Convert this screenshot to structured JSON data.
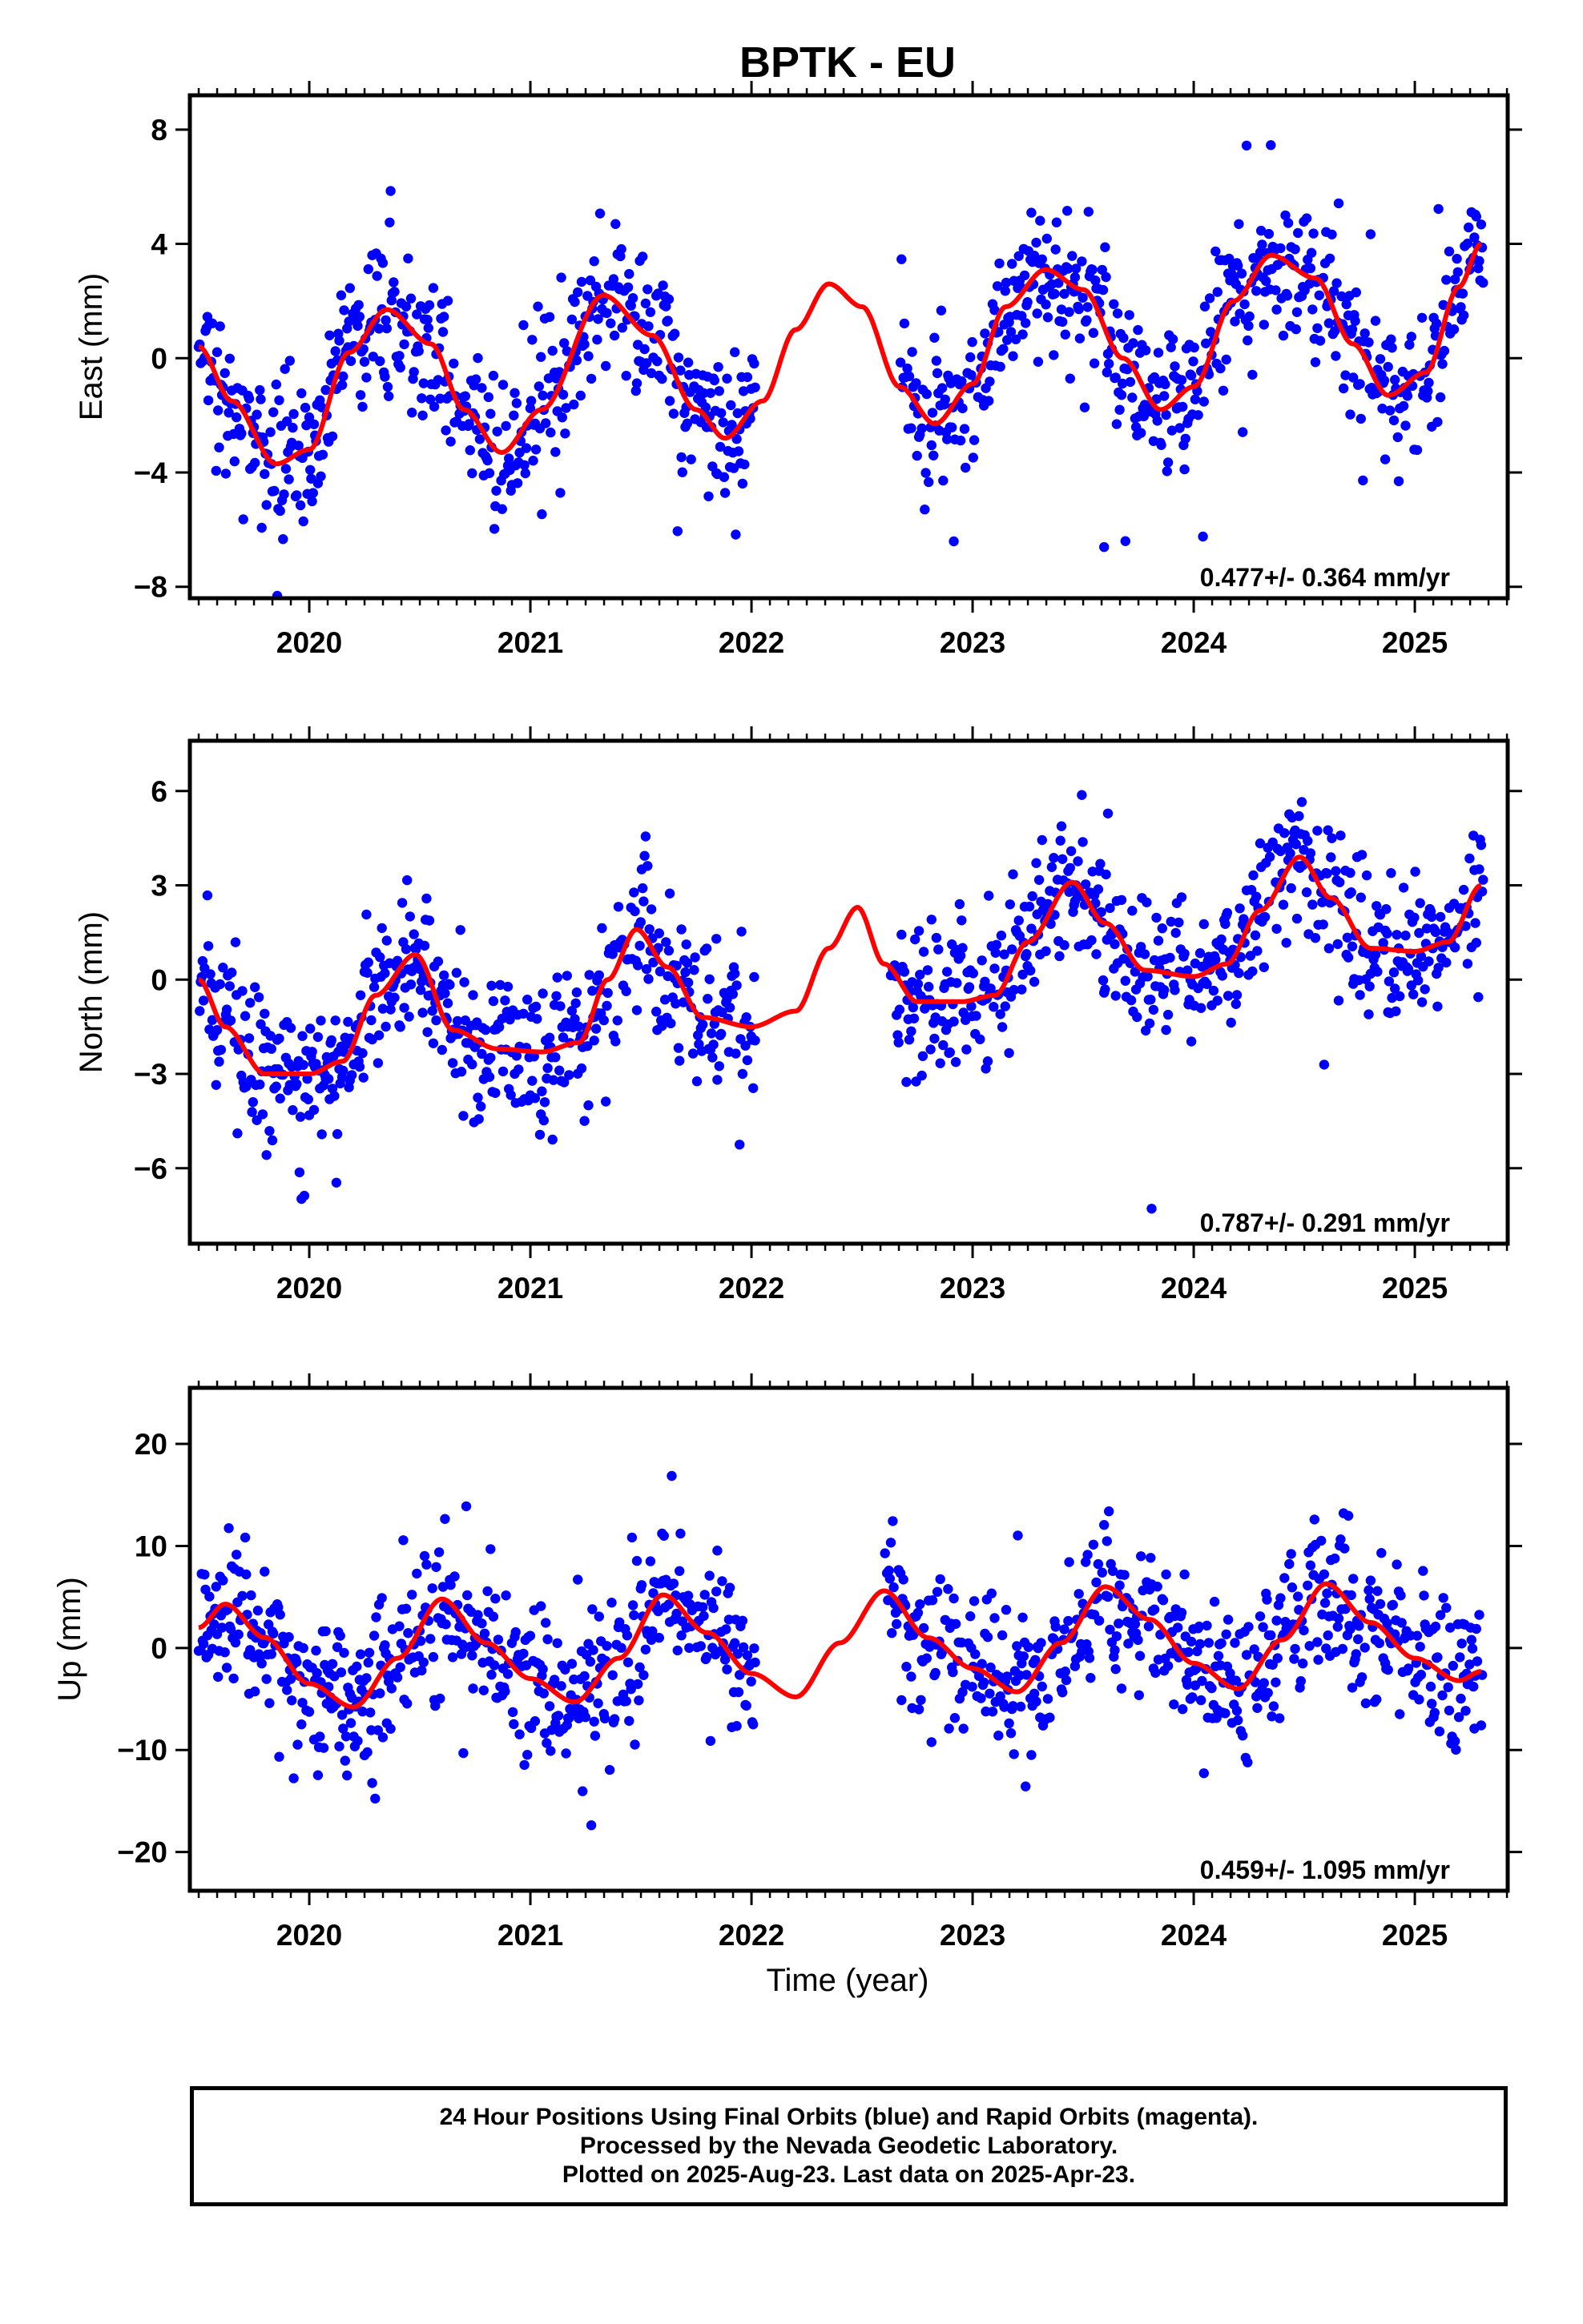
{
  "title": "BPTK - EU",
  "xlabel": "Time (year)",
  "caption": {
    "line1": "24 Hour Positions Using Final Orbits (blue) and Rapid Orbits (magenta).",
    "line2": "Processed by the Nevada Geodetic Laboratory.",
    "line3": "Plotted on 2025-Aug-23. Last data on 2025-Apr-23."
  },
  "colors": {
    "points": "#0000ff",
    "fit": "#ff0000",
    "frame": "#000000"
  },
  "chart_data": [
    {
      "type": "scatter",
      "panel": "east",
      "ylabel": "East (mm)",
      "xlim": [
        2019.46,
        2025.42
      ],
      "ylim": [
        -8.4,
        9.2
      ],
      "yticks": [
        8,
        4,
        0,
        -4,
        -8
      ],
      "ytick_labels": [
        "8",
        "4",
        "0",
        "−4",
        "−8"
      ],
      "xticks": [
        2020,
        2021,
        2022,
        2023,
        2024,
        2025
      ],
      "xtick_labels": [
        "2020",
        "2021",
        "2022",
        "2023",
        "2024",
        "2025"
      ],
      "rate": "0.477+/- 0.364 mm/yr",
      "data_gap": [
        2022.02,
        2022.67
      ],
      "fit": {
        "x": [
          2019.5,
          2019.65,
          2019.85,
          2020.0,
          2020.18,
          2020.35,
          2020.55,
          2020.7,
          2020.87,
          2021.05,
          2021.33,
          2021.55,
          2021.75,
          2021.88,
          2022.05,
          2022.2,
          2022.35,
          2022.5,
          2022.67,
          2022.83,
          2023.0,
          2023.15,
          2023.33,
          2023.5,
          2023.68,
          2023.85,
          2024.0,
          2024.18,
          2024.35,
          2024.55,
          2024.72,
          2024.88,
          2025.05,
          2025.2,
          2025.3
        ],
        "y": [
          0.4,
          -1.5,
          -3.7,
          -3.2,
          0.2,
          1.7,
          0.5,
          -1.8,
          -3.3,
          -1.8,
          2.2,
          0.8,
          -1.8,
          -2.8,
          -1.5,
          1.0,
          2.6,
          1.8,
          -1.0,
          -2.3,
          -0.9,
          1.8,
          3.1,
          2.4,
          0.0,
          -1.8,
          -1.0,
          2.0,
          3.6,
          2.8,
          0.5,
          -1.3,
          -0.5,
          2.5,
          4.0
        ]
      }
    },
    {
      "type": "scatter",
      "panel": "north",
      "ylabel": "North (mm)",
      "xlim": [
        2019.46,
        2025.42
      ],
      "ylim": [
        -8.4,
        7.6
      ],
      "yticks": [
        6,
        3,
        0,
        -3,
        -6
      ],
      "ytick_labels": [
        "6",
        "3",
        "0",
        "−3",
        "−6"
      ],
      "xticks": [
        2020,
        2021,
        2022,
        2023,
        2024,
        2025
      ],
      "xtick_labels": [
        "2020",
        "2021",
        "2022",
        "2023",
        "2024",
        "2025"
      ],
      "rate": "0.787+/- 0.291 mm/yr",
      "data_gap": [
        2022.02,
        2022.63
      ],
      "fit": {
        "x": [
          2019.5,
          2019.62,
          2019.8,
          2020.0,
          2020.15,
          2020.3,
          2020.48,
          2020.65,
          2020.85,
          2021.05,
          2021.22,
          2021.35,
          2021.48,
          2021.62,
          2021.78,
          2022.0,
          2022.2,
          2022.35,
          2022.48,
          2022.6,
          2022.75,
          2022.95,
          2023.1,
          2023.25,
          2023.45,
          2023.6,
          2023.78,
          2024.0,
          2024.15,
          2024.3,
          2024.48,
          2024.62,
          2024.8,
          2025.0,
          2025.15,
          2025.3
        ],
        "y": [
          0.0,
          -1.5,
          -3.0,
          -3.0,
          -2.6,
          -0.5,
          0.8,
          -1.6,
          -2.2,
          -2.3,
          -2.0,
          0.0,
          1.6,
          0.4,
          -1.2,
          -1.5,
          -1.0,
          1.0,
          2.3,
          0.5,
          -0.7,
          -0.7,
          -0.5,
          1.2,
          3.1,
          1.8,
          0.3,
          0.1,
          0.5,
          2.2,
          3.9,
          2.6,
          1.0,
          0.9,
          1.2,
          3.0
        ]
      }
    },
    {
      "type": "scatter",
      "panel": "up",
      "ylabel": "Up (mm)",
      "xlim": [
        2019.46,
        2025.42
      ],
      "ylim": [
        -23.8,
        25.5
      ],
      "yticks": [
        20,
        10,
        0,
        -10,
        -20
      ],
      "ytick_labels": [
        "20",
        "10",
        "0",
        "−10",
        "−20"
      ],
      "xticks": [
        2020,
        2021,
        2022,
        2023,
        2024,
        2025
      ],
      "xtick_labels": [
        "2020",
        "2021",
        "2022",
        "2023",
        "2024",
        "2025"
      ],
      "rate": "0.459+/- 1.095 mm/yr",
      "data_gap": [
        2022.02,
        2022.6
      ],
      "fit": {
        "x": [
          2019.5,
          2019.62,
          2019.8,
          2020.0,
          2020.2,
          2020.4,
          2020.6,
          2020.8,
          2021.0,
          2021.2,
          2021.4,
          2021.6,
          2021.8,
          2022.0,
          2022.2,
          2022.4,
          2022.6,
          2022.8,
          2023.0,
          2023.2,
          2023.4,
          2023.6,
          2023.8,
          2024.0,
          2024.2,
          2024.4,
          2024.6,
          2024.8,
          2025.0,
          2025.2,
          2025.3
        ],
        "y": [
          2.0,
          4.3,
          1.0,
          -3.5,
          -5.8,
          -1.0,
          4.8,
          0.5,
          -3.0,
          -5.3,
          -1.0,
          5.2,
          1.5,
          -2.5,
          -4.8,
          0.5,
          5.6,
          1.0,
          -2.0,
          -4.3,
          0.5,
          6.0,
          2.8,
          -1.5,
          -4.0,
          0.8,
          6.3,
          2.5,
          -1.0,
          -3.2,
          -2.3
        ]
      }
    }
  ]
}
